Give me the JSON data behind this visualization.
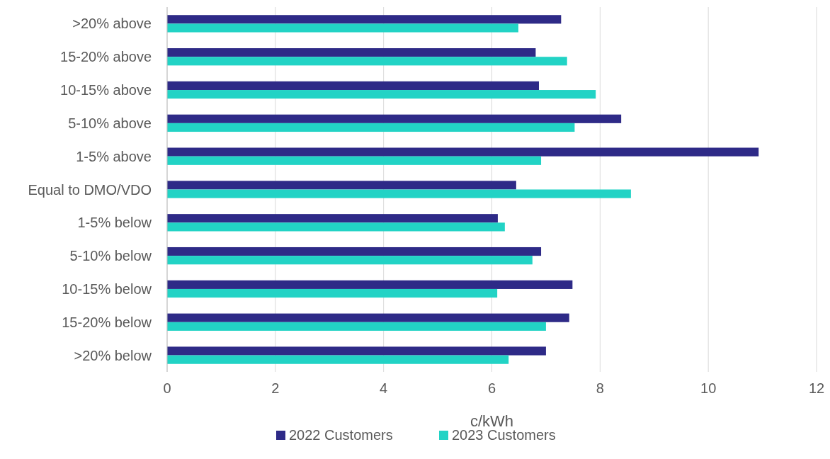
{
  "chart_data": {
    "type": "bar",
    "orientation": "horizontal",
    "xlabel": "c/kWh",
    "categories": [
      ">20% above",
      "15-20% above",
      "10-15% above",
      "5-10% above",
      "1-5% above",
      "Equal to DMO/VDO",
      "1-5% below",
      "5-10% below",
      "10-15% below",
      "15-20% below",
      ">20% below"
    ],
    "series": [
      {
        "name": "2022 Customers",
        "color": "#2e2a87",
        "values": [
          7.28,
          6.81,
          6.87,
          8.39,
          10.93,
          6.45,
          6.11,
          6.91,
          7.49,
          7.43,
          7.0
        ]
      },
      {
        "name": "2023 Customers",
        "color": "#22d3c5",
        "values": [
          6.49,
          7.39,
          7.92,
          7.53,
          6.91,
          8.57,
          6.24,
          6.75,
          6.1,
          7.0,
          6.31
        ]
      }
    ],
    "xlim": [
      0,
      12
    ],
    "xticks": [
      0,
      2,
      4,
      6,
      8,
      10,
      12
    ],
    "grid": "x",
    "legend": "bottom"
  }
}
